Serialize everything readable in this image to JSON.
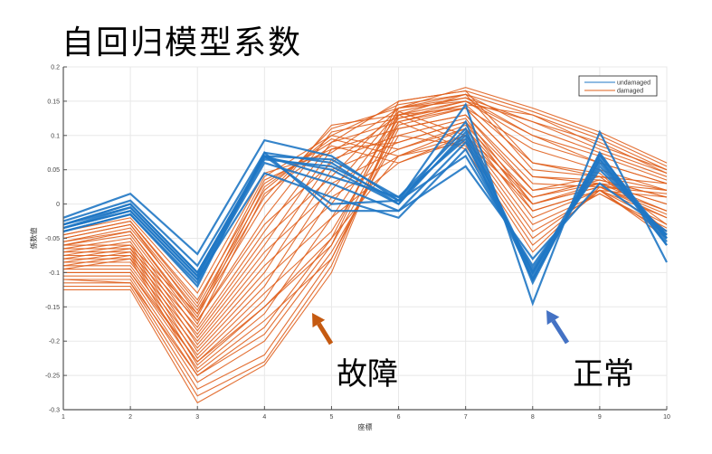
{
  "title": "自回归模型系数",
  "annotations": {
    "fault_label": "故障",
    "normal_label": "正常",
    "fault_arrow_color": "#C55A11",
    "normal_arrow_color": "#4472C4"
  },
  "chart_data": {
    "type": "line",
    "title": "自回归模型系数",
    "xlabel": "座標",
    "ylabel": "係数値",
    "x": [
      1,
      2,
      3,
      4,
      5,
      6,
      7,
      8,
      9,
      10
    ],
    "xticks": [
      "1",
      "2",
      "3",
      "4",
      "5",
      "6",
      "7",
      "8",
      "9",
      "10"
    ],
    "yticks": [
      "0.2",
      "0.15",
      "0.1",
      "0.05",
      "0",
      "-0.05",
      "-0.1",
      "-0.15",
      "-0.2",
      "-0.25",
      "-0.3"
    ],
    "xlim": [
      1,
      10
    ],
    "ylim": [
      -0.3,
      0.2
    ],
    "grid": true,
    "legend": {
      "position": "top-right",
      "entries": [
        "undamaged",
        "damaged"
      ]
    },
    "colors": {
      "undamaged": "#1F77C4",
      "damaged": "#E0601E"
    },
    "series": [
      {
        "name": "undamaged",
        "lines": [
          [
            -0.02,
            0.015,
            -0.073,
            0.093,
            0.07,
            0.005,
            0.145,
            -0.145,
            0.105,
            -0.085
          ],
          [
            -0.025,
            0.005,
            -0.09,
            0.075,
            0.06,
            0.0,
            0.12,
            -0.115,
            0.075,
            -0.06
          ],
          [
            -0.03,
            0.0,
            -0.1,
            0.07,
            0.065,
            0.01,
            0.11,
            -0.11,
            0.07,
            -0.055
          ],
          [
            -0.03,
            -0.005,
            -0.105,
            0.065,
            0.055,
            0.005,
            0.1,
            -0.105,
            0.065,
            -0.05
          ],
          [
            -0.035,
            -0.01,
            -0.11,
            0.06,
            0.03,
            -0.01,
            0.09,
            -0.1,
            0.06,
            -0.05
          ],
          [
            -0.035,
            -0.01,
            -0.11,
            0.045,
            0.01,
            -0.02,
            0.08,
            -0.095,
            0.055,
            -0.045
          ],
          [
            -0.04,
            -0.015,
            -0.115,
            0.07,
            0.0,
            0.005,
            0.07,
            -0.09,
            0.05,
            -0.045
          ],
          [
            -0.04,
            -0.015,
            -0.12,
            0.075,
            -0.01,
            -0.01,
            0.055,
            -0.08,
            0.03,
            -0.04
          ],
          [
            -0.035,
            -0.005,
            -0.105,
            0.07,
            0.04,
            0.01,
            0.095,
            -0.11,
            0.065,
            -0.06
          ],
          [
            -0.03,
            0.0,
            -0.1,
            0.068,
            0.05,
            0.0,
            0.105,
            -0.1,
            0.072,
            -0.05
          ]
        ]
      },
      {
        "name": "damaged",
        "lines": [
          [
            -0.04,
            -0.02,
            -0.13,
            0.045,
            0.075,
            0.14,
            0.17,
            0.14,
            0.105,
            0.06
          ],
          [
            -0.045,
            -0.025,
            -0.14,
            0.03,
            0.09,
            0.15,
            0.165,
            0.135,
            0.1,
            0.055
          ],
          [
            -0.05,
            -0.03,
            -0.15,
            0.02,
            0.1,
            0.145,
            0.16,
            0.13,
            0.095,
            0.05
          ],
          [
            -0.055,
            -0.035,
            -0.155,
            0.01,
            0.11,
            0.14,
            0.155,
            0.12,
            0.09,
            0.045
          ],
          [
            -0.06,
            -0.06,
            -0.16,
            0.0,
            0.115,
            0.13,
            0.15,
            0.1,
            0.06,
            0.03
          ],
          [
            -0.065,
            -0.065,
            -0.17,
            -0.02,
            0.105,
            0.125,
            0.145,
            0.06,
            0.04,
            0.02
          ],
          [
            -0.07,
            -0.07,
            -0.18,
            -0.04,
            0.09,
            0.12,
            0.14,
            0.04,
            0.035,
            0.01
          ],
          [
            -0.075,
            -0.075,
            -0.19,
            -0.06,
            0.08,
            0.11,
            0.13,
            0.02,
            0.03,
            0.0
          ],
          [
            -0.08,
            -0.08,
            -0.2,
            -0.08,
            0.065,
            0.1,
            0.125,
            0.0,
            0.025,
            -0.01
          ],
          [
            -0.085,
            -0.085,
            -0.21,
            -0.1,
            0.05,
            0.09,
            0.12,
            -0.01,
            0.02,
            -0.02
          ],
          [
            -0.09,
            -0.09,
            -0.22,
            -0.12,
            0.03,
            0.08,
            0.11,
            -0.02,
            0.02,
            -0.03
          ],
          [
            -0.095,
            -0.095,
            -0.23,
            -0.14,
            0.01,
            0.07,
            0.1,
            -0.03,
            0.015,
            -0.035
          ],
          [
            -0.1,
            -0.1,
            -0.24,
            -0.16,
            -0.02,
            0.06,
            0.095,
            -0.04,
            0.015,
            -0.04
          ],
          [
            -0.105,
            -0.105,
            -0.25,
            -0.18,
            -0.05,
            0.07,
            0.09,
            -0.05,
            0.02,
            -0.045
          ],
          [
            -0.11,
            -0.11,
            -0.26,
            -0.2,
            -0.07,
            0.1,
            0.085,
            -0.06,
            0.02,
            -0.05
          ],
          [
            -0.115,
            -0.115,
            -0.27,
            -0.22,
            -0.08,
            0.12,
            0.08,
            -0.07,
            0.025,
            -0.02
          ],
          [
            -0.12,
            -0.12,
            -0.28,
            -0.23,
            -0.09,
            0.13,
            0.09,
            0.0,
            0.03,
            0.0
          ],
          [
            -0.125,
            -0.125,
            -0.29,
            -0.235,
            -0.1,
            0.135,
            0.1,
            0.01,
            0.035,
            0.01
          ],
          [
            -0.06,
            -0.04,
            -0.17,
            -0.03,
            0.06,
            0.13,
            0.14,
            0.08,
            0.05,
            0.02
          ],
          [
            -0.065,
            -0.05,
            -0.185,
            -0.05,
            0.04,
            0.14,
            0.15,
            0.09,
            0.06,
            0.03
          ],
          [
            -0.07,
            -0.055,
            -0.195,
            -0.07,
            0.02,
            0.135,
            0.155,
            0.1,
            0.07,
            0.035
          ],
          [
            -0.075,
            -0.06,
            -0.205,
            -0.09,
            0.0,
            0.13,
            0.16,
            0.11,
            0.075,
            0.04
          ],
          [
            -0.08,
            -0.065,
            -0.215,
            -0.11,
            -0.02,
            0.125,
            0.15,
            0.12,
            0.08,
            0.045
          ],
          [
            -0.085,
            -0.07,
            -0.225,
            -0.13,
            -0.04,
            0.12,
            0.145,
            0.13,
            0.085,
            0.05
          ],
          [
            -0.09,
            -0.075,
            -0.235,
            -0.15,
            -0.06,
            0.115,
            0.14,
            0.04,
            0.03,
            -0.01
          ],
          [
            -0.095,
            -0.08,
            -0.245,
            -0.17,
            -0.08,
            0.11,
            0.13,
            0.03,
            0.025,
            -0.015
          ],
          [
            -0.05,
            -0.03,
            -0.16,
            0.035,
            0.08,
            0.09,
            0.12,
            0.02,
            0.04,
            0.03
          ],
          [
            -0.045,
            -0.025,
            -0.145,
            0.04,
            0.1,
            0.08,
            0.115,
            0.01,
            0.03,
            0.02
          ],
          [
            -0.055,
            -0.04,
            -0.165,
            0.025,
            0.095,
            0.07,
            0.11,
            0.0,
            0.025,
            0.015
          ],
          [
            -0.06,
            -0.045,
            -0.175,
            0.015,
            0.085,
            0.06,
            0.1,
            -0.01,
            0.02,
            0.01
          ],
          [
            -0.1,
            -0.1,
            -0.23,
            -0.15,
            -0.05,
            0.14,
            0.16,
            0.05,
            0.04,
            -0.03
          ],
          [
            -0.11,
            -0.115,
            -0.25,
            -0.19,
            -0.06,
            0.15,
            0.165,
            0.06,
            0.045,
            -0.04
          ]
        ]
      }
    ]
  }
}
